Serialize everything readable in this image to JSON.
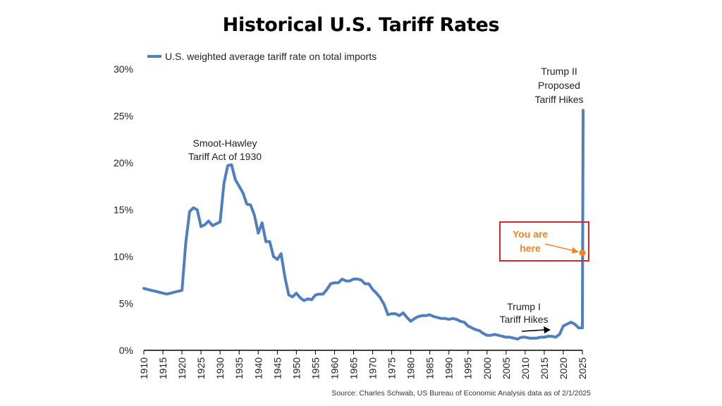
{
  "title": "Historical U.S. Tariff Rates",
  "colors": {
    "line": "#4f7fbf",
    "highlight_box": "#d9262b",
    "marker": "#f0832b",
    "axis": "#000000"
  },
  "chart_data": {
    "type": "line",
    "title": "Historical U.S. Tariff Rates",
    "xlabel": "",
    "ylabel": "",
    "xlim": [
      1910,
      2025
    ],
    "ylim": [
      0,
      30
    ],
    "y_ticks": [
      "0%",
      "5%",
      "10%",
      "15%",
      "20%",
      "25%",
      "30%"
    ],
    "x_ticks": [
      "1910",
      "1915",
      "1920",
      "1925",
      "1930",
      "1935",
      "1940",
      "1945",
      "1950",
      "1955",
      "1960",
      "1965",
      "1970",
      "1975",
      "1980",
      "1985",
      "1990",
      "1995",
      "2000",
      "2005",
      "2010",
      "2015",
      "2020",
      "2025"
    ],
    "grid": false,
    "legend_position": "top-left",
    "series": [
      {
        "name": "U.S. weighted average tariff rate on total imports",
        "x": [
          1910,
          1911,
          1912,
          1913,
          1914,
          1915,
          1916,
          1917,
          1918,
          1919,
          1920,
          1921,
          1922,
          1923,
          1924,
          1925,
          1926,
          1927,
          1928,
          1929,
          1930,
          1931,
          1932,
          1933,
          1934,
          1935,
          1936,
          1937,
          1938,
          1939,
          1940,
          1941,
          1942,
          1943,
          1944,
          1945,
          1946,
          1947,
          1948,
          1949,
          1950,
          1951,
          1952,
          1953,
          1954,
          1955,
          1956,
          1957,
          1958,
          1959,
          1960,
          1961,
          1962,
          1963,
          1964,
          1965,
          1966,
          1967,
          1968,
          1969,
          1970,
          1971,
          1972,
          1973,
          1974,
          1975,
          1976,
          1977,
          1978,
          1979,
          1980,
          1981,
          1982,
          1983,
          1984,
          1985,
          1986,
          1987,
          1988,
          1989,
          1990,
          1991,
          1992,
          1993,
          1994,
          1995,
          1996,
          1997,
          1998,
          1999,
          2000,
          2001,
          2002,
          2003,
          2004,
          2005,
          2006,
          2007,
          2008,
          2009,
          2010,
          2011,
          2012,
          2013,
          2014,
          2015,
          2016,
          2017,
          2018,
          2019,
          2020,
          2021,
          2022,
          2023,
          2024,
          2025
        ],
        "values": [
          6.6,
          6.5,
          6.4,
          6.3,
          6.2,
          6.1,
          6.0,
          6.1,
          6.2,
          6.3,
          6.4,
          11.5,
          14.8,
          15.2,
          15.0,
          13.2,
          13.4,
          13.8,
          13.3,
          13.5,
          13.7,
          17.8,
          19.7,
          19.8,
          18.2,
          17.5,
          16.8,
          15.6,
          15.5,
          14.4,
          12.5,
          13.6,
          11.6,
          11.6,
          10.0,
          9.7,
          10.3,
          7.8,
          5.9,
          5.7,
          6.1,
          5.6,
          5.3,
          5.5,
          5.4,
          5.9,
          6.0,
          6.0,
          6.5,
          7.1,
          7.2,
          7.2,
          7.6,
          7.4,
          7.4,
          7.6,
          7.6,
          7.5,
          7.1,
          7.1,
          6.5,
          6.1,
          5.6,
          4.9,
          3.8,
          3.9,
          3.9,
          3.7,
          4.0,
          3.5,
          3.1,
          3.4,
          3.6,
          3.7,
          3.7,
          3.8,
          3.6,
          3.5,
          3.4,
          3.4,
          3.3,
          3.4,
          3.3,
          3.1,
          3.0,
          2.6,
          2.4,
          2.2,
          2.1,
          1.8,
          1.6,
          1.6,
          1.7,
          1.6,
          1.5,
          1.4,
          1.4,
          1.3,
          1.2,
          1.4,
          1.4,
          1.3,
          1.3,
          1.3,
          1.4,
          1.4,
          1.5,
          1.5,
          1.4,
          1.7,
          2.6,
          2.8,
          3.0,
          2.8,
          2.4,
          2.4
        ],
        "final_point": {
          "x": 2025,
          "value": 25.6
        }
      }
    ],
    "annotations": [
      {
        "id": "smoot",
        "lines": [
          "Smoot-Hawley",
          "Tariff Act of 1930"
        ]
      },
      {
        "id": "trump1",
        "lines": [
          "Trump I",
          "Tariff Hikes"
        ]
      },
      {
        "id": "trump2",
        "lines": [
          "Trump II",
          "Proposed",
          "Tariff Hikes"
        ]
      },
      {
        "id": "here",
        "lines": [
          "You are",
          "here"
        ],
        "marker_value": 10.4
      }
    ]
  },
  "source_note": "Source: Charles Schwab, US Bureau of Economic Analysis data as of 2/1/2025"
}
